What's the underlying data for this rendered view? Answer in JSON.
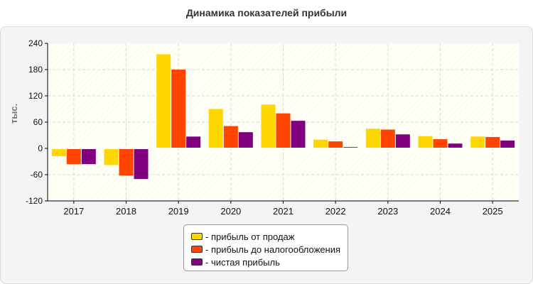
{
  "chart_data": {
    "type": "bar",
    "title": "Динамика показателей прибыли",
    "ylabel": "тыс.",
    "xlabel": "",
    "ylim": [
      -120,
      240
    ],
    "yticks": [
      -120,
      -60,
      0,
      60,
      120,
      180,
      240
    ],
    "grid": true,
    "legend_position": "bottom-center",
    "categories": [
      "2017",
      "2018",
      "2019",
      "2020",
      "2021",
      "2022",
      "2023",
      "2024",
      "2025"
    ],
    "series": [
      {
        "name": "- прибыль от продаж",
        "color": "#FFD700",
        "values": [
          -18,
          -38,
          215,
          90,
          100,
          20,
          45,
          28,
          27
        ]
      },
      {
        "name": "- прибыль до налогообложения",
        "color": "#FF4500",
        "values": [
          -36,
          -62,
          180,
          51,
          80,
          16,
          43,
          21,
          26
        ]
      },
      {
        "name": "- чистая прибыль",
        "color": "#800080",
        "values": [
          -36,
          -70,
          27,
          37,
          63,
          3,
          32,
          11,
          18
        ]
      }
    ]
  }
}
